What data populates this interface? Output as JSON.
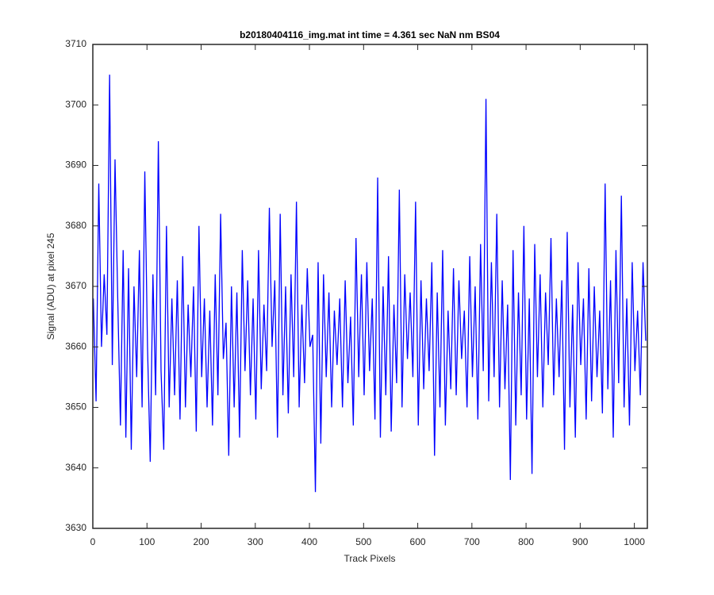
{
  "chart_data": {
    "type": "line",
    "title": "b20180404116_img.mat int time = 4.361 sec  NaN nm BS04",
    "x_label": "Track Pixels",
    "y_label": "Signal (ADU) at pixel 245",
    "xlim": [
      0,
      1024
    ],
    "ylim": [
      3630,
      3710
    ],
    "xticks": [
      0,
      100,
      200,
      300,
      400,
      500,
      600,
      700,
      800,
      900,
      1000
    ],
    "yticks": [
      3630,
      3640,
      3650,
      3660,
      3670,
      3680,
      3690,
      3700,
      3710
    ],
    "grid": false,
    "x": [
      1,
      6,
      11,
      16,
      21,
      26,
      31,
      36,
      41,
      46,
      51,
      56,
      61,
      66,
      71,
      76,
      81,
      86,
      91,
      96,
      101,
      106,
      111,
      116,
      121,
      126,
      131,
      136,
      141,
      146,
      151,
      156,
      161,
      166,
      171,
      176,
      181,
      186,
      191,
      196,
      201,
      206,
      211,
      216,
      221,
      226,
      231,
      236,
      241,
      246,
      251,
      256,
      261,
      266,
      271,
      276,
      281,
      286,
      291,
      296,
      301,
      306,
      311,
      316,
      321,
      326,
      331,
      336,
      341,
      346,
      351,
      356,
      361,
      366,
      371,
      376,
      381,
      386,
      391,
      396,
      401,
      406,
      411,
      416,
      421,
      426,
      431,
      436,
      441,
      446,
      451,
      456,
      461,
      466,
      471,
      476,
      481,
      486,
      491,
      496,
      501,
      506,
      511,
      516,
      521,
      526,
      531,
      536,
      541,
      546,
      551,
      556,
      561,
      566,
      571,
      576,
      581,
      586,
      591,
      596,
      601,
      606,
      611,
      616,
      621,
      626,
      631,
      636,
      641,
      646,
      651,
      656,
      661,
      666,
      671,
      676,
      681,
      686,
      691,
      696,
      701,
      706,
      711,
      716,
      721,
      726,
      731,
      736,
      741,
      746,
      751,
      756,
      761,
      766,
      771,
      776,
      781,
      786,
      791,
      796,
      801,
      806,
      811,
      816,
      821,
      826,
      831,
      836,
      841,
      846,
      851,
      856,
      861,
      866,
      871,
      876,
      881,
      886,
      891,
      896,
      901,
      906,
      911,
      916,
      921,
      926,
      931,
      936,
      941,
      946,
      951,
      956,
      961,
      966,
      971,
      976,
      981,
      986,
      991,
      996,
      1001,
      1006,
      1011,
      1016,
      1021
    ],
    "series": [
      {
        "color": "#0000ff",
        "values": [
          3668,
          3651,
          3687,
          3660,
          3672,
          3662,
          3705,
          3657,
          3691,
          3668,
          3647,
          3676,
          3645,
          3673,
          3643,
          3670,
          3655,
          3676,
          3650,
          3689,
          3660,
          3641,
          3672,
          3652,
          3694,
          3656,
          3643,
          3680,
          3650,
          3668,
          3652,
          3671,
          3648,
          3675,
          3650,
          3667,
          3655,
          3670,
          3646,
          3680,
          3655,
          3668,
          3650,
          3666,
          3647,
          3672,
          3652,
          3682,
          3658,
          3664,
          3642,
          3670,
          3650,
          3669,
          3645,
          3676,
          3656,
          3671,
          3652,
          3668,
          3648,
          3676,
          3653,
          3667,
          3656,
          3683,
          3660,
          3671,
          3645,
          3682,
          3652,
          3670,
          3649,
          3672,
          3655,
          3684,
          3650,
          3667,
          3654,
          3673,
          3660,
          3662,
          3636,
          3674,
          3644,
          3672,
          3655,
          3669,
          3650,
          3666,
          3657,
          3668,
          3650,
          3671,
          3654,
          3665,
          3647,
          3678,
          3655,
          3672,
          3652,
          3674,
          3656,
          3668,
          3648,
          3688,
          3645,
          3670,
          3652,
          3675,
          3646,
          3667,
          3654,
          3686,
          3650,
          3672,
          3658,
          3669,
          3655,
          3684,
          3647,
          3671,
          3653,
          3668,
          3656,
          3674,
          3642,
          3669,
          3650,
          3676,
          3647,
          3666,
          3653,
          3673,
          3652,
          3671,
          3658,
          3666,
          3650,
          3675,
          3655,
          3670,
          3648,
          3677,
          3656,
          3701,
          3651,
          3674,
          3655,
          3682,
          3650,
          3671,
          3653,
          3667,
          3638,
          3676,
          3647,
          3669,
          3652,
          3680,
          3648,
          3668,
          3639,
          3677,
          3655,
          3672,
          3650,
          3669,
          3657,
          3678,
          3652,
          3668,
          3655,
          3671,
          3643,
          3679,
          3650,
          3667,
          3645,
          3674,
          3657,
          3668,
          3648,
          3673,
          3651,
          3670,
          3655,
          3666,
          3649,
          3687,
          3653,
          3671,
          3645,
          3676,
          3654,
          3685,
          3650,
          3668,
          3647,
          3674,
          3656,
          3666,
          3652,
          3674,
          3661
        ]
      }
    ]
  }
}
